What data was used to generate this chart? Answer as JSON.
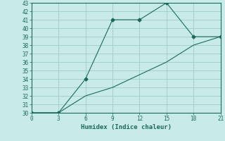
{
  "line1_x": [
    0,
    3,
    6,
    9,
    12,
    15,
    18,
    21
  ],
  "line1_y": [
    30,
    30,
    34,
    41,
    41,
    43,
    39,
    39
  ],
  "line2_x": [
    0,
    3,
    6,
    9,
    12,
    15,
    18,
    21
  ],
  "line2_y": [
    30,
    30,
    32,
    33,
    34.5,
    36,
    38,
    39
  ],
  "line_color": "#1a6b5a",
  "bg_color": "#c8eae8",
  "grid_color": "#a0cbc8",
  "xlabel": "Humidex (Indice chaleur)",
  "xlabel_fontsize": 6.5,
  "tick_fontsize": 5.5,
  "xlim": [
    0,
    21
  ],
  "ylim": [
    30,
    43
  ],
  "xticks": [
    0,
    3,
    6,
    9,
    12,
    15,
    18,
    21
  ],
  "yticks": [
    30,
    31,
    32,
    33,
    34,
    35,
    36,
    37,
    38,
    39,
    40,
    41,
    42,
    43
  ]
}
